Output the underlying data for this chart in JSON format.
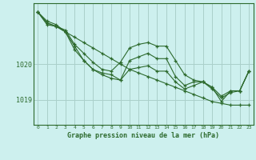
{
  "background_color": "#cdf0ee",
  "grid_color": "#aacfca",
  "line_color": "#2d6a2d",
  "marker_color": "#2d6a2d",
  "xlabel": "Graphe pression niveau de la mer (hPa)",
  "ylim": [
    1018.3,
    1021.7
  ],
  "xlim": [
    -0.5,
    23.5
  ],
  "yticks": [
    1019,
    1020
  ],
  "xticks": [
    0,
    1,
    2,
    3,
    4,
    5,
    6,
    7,
    8,
    9,
    10,
    11,
    12,
    13,
    14,
    15,
    16,
    17,
    18,
    19,
    20,
    21,
    22,
    23
  ],
  "series": [
    [
      1021.45,
      1021.2,
      1021.1,
      1020.9,
      1020.75,
      1020.6,
      1020.45,
      1020.3,
      1020.15,
      1020.0,
      1019.85,
      1019.75,
      1019.65,
      1019.55,
      1019.45,
      1019.35,
      1019.25,
      1019.15,
      1019.05,
      1018.95,
      1018.9,
      1018.85,
      1018.85,
      1018.85
    ],
    [
      1021.45,
      1021.15,
      1021.05,
      1020.95,
      1020.55,
      1020.3,
      1020.05,
      1019.85,
      1019.8,
      1020.05,
      1020.45,
      1020.55,
      1020.6,
      1020.5,
      1020.5,
      1020.1,
      1019.7,
      1019.55,
      1019.5,
      1019.35,
      1018.95,
      1019.25,
      1019.25,
      1019.8
    ],
    [
      1021.45,
      1021.15,
      1021.05,
      1020.9,
      1020.4,
      1020.1,
      1019.85,
      1019.75,
      1019.7,
      1019.55,
      1020.1,
      1020.2,
      1020.3,
      1020.15,
      1020.15,
      1019.65,
      1019.4,
      1019.5,
      1019.5,
      1019.35,
      1019.1,
      1019.25,
      1019.25,
      1019.8
    ],
    [
      1021.45,
      1021.1,
      1021.05,
      1020.9,
      1020.5,
      1020.1,
      1019.85,
      1019.7,
      1019.6,
      1019.55,
      1019.85,
      1019.9,
      1019.95,
      1019.8,
      1019.8,
      1019.5,
      1019.3,
      1019.4,
      1019.5,
      1019.3,
      1019.05,
      1019.2,
      1019.25,
      1019.8
    ]
  ]
}
